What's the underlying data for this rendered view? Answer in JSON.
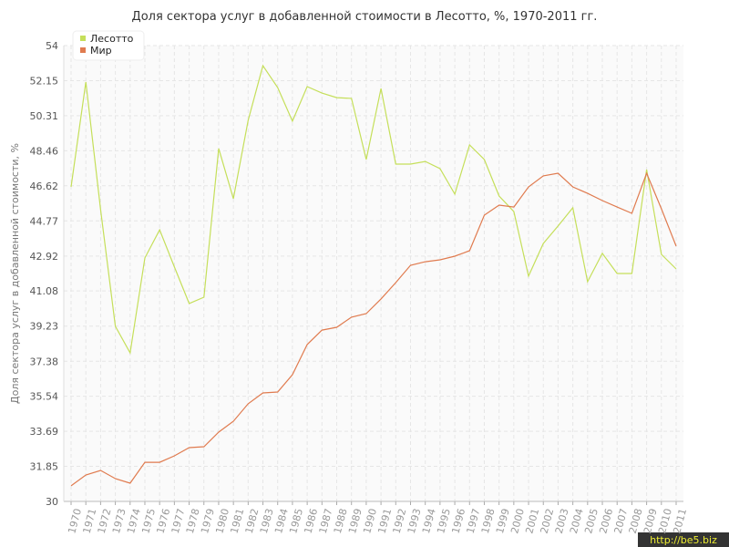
{
  "chart_data": {
    "type": "line",
    "title": "Доля сектора услуг в добавленной стоимости в Лесотто, %, 1970-2011 гг.",
    "y_label": "Доля сектора услуг в добавленной стоимости, %",
    "watermark": "http://be5.biz",
    "categories": [
      "1970",
      "1971",
      "1972",
      "1973",
      "1974",
      "1975",
      "1976",
      "1977",
      "1978",
      "1979",
      "1980",
      "1981",
      "1982",
      "1983",
      "1984",
      "1985",
      "1986",
      "1987",
      "1988",
      "1989",
      "1990",
      "1991",
      "1992",
      "1993",
      "1994",
      "1995",
      "1996",
      "1997",
      "1998",
      "1999",
      "2000",
      "2001",
      "2002",
      "2003",
      "2004",
      "2005",
      "2006",
      "2007",
      "2008",
      "2009",
      "2010",
      "2011"
    ],
    "series": [
      {
        "name": "Лесотто",
        "color": "#c5df5a",
        "values": [
          46.56,
          52.08,
          45.36,
          39.22,
          37.82,
          42.82,
          44.3,
          42.34,
          40.42,
          40.75,
          48.58,
          45.94,
          50.06,
          52.94,
          51.79,
          50.02,
          51.84,
          51.5,
          51.26,
          51.22,
          48.0,
          51.74,
          47.76,
          47.76,
          47.9,
          47.52,
          46.18,
          48.77,
          48.0,
          46.08,
          45.26,
          41.86,
          43.58,
          44.5,
          45.46,
          41.57,
          43.06,
          42.0,
          42.0,
          47.47,
          43.01,
          42.24
        ]
      },
      {
        "name": "Мир",
        "color": "#e07b4f",
        "values": [
          30.82,
          31.39,
          31.63,
          31.2,
          30.96,
          32.06,
          32.06,
          32.4,
          32.83,
          32.88,
          33.65,
          34.22,
          35.14,
          35.71,
          35.76,
          36.67,
          38.26,
          39.02,
          39.17,
          39.7,
          39.89,
          40.66,
          41.52,
          42.43,
          42.62,
          42.72,
          42.91,
          43.2,
          45.07,
          45.6,
          45.5,
          46.56,
          47.14,
          47.28,
          46.56,
          46.22,
          45.84,
          45.5,
          45.17,
          47.28,
          45.41,
          43.44
        ]
      }
    ],
    "ylim": [
      30,
      54
    ],
    "yticks": [
      30,
      31.85,
      33.69,
      35.54,
      37.38,
      39.23,
      41.08,
      42.92,
      44.77,
      46.62,
      48.46,
      50.31,
      52.15,
      54
    ],
    "grid": true,
    "legend": "top-left"
  }
}
